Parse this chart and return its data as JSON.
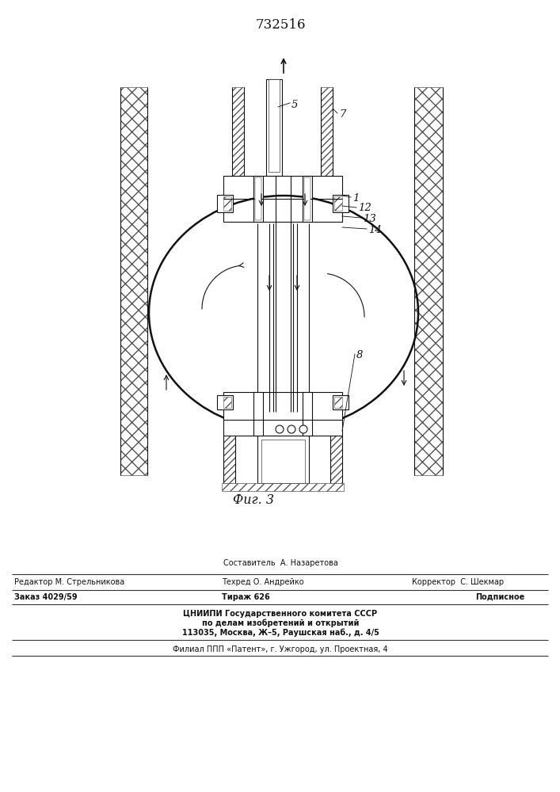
{
  "patent_number": "732516",
  "fig_label": "Фиг. 3",
  "bg_color": "#ffffff",
  "line_color": "#111111",
  "footer": {
    "составитель": "Составитель  А. Назаретова",
    "редактор": "Редактор М. Стрельникова",
    "техред": "Техред О. Андрейко",
    "корректор": "Корректор  С. Шекмар",
    "заказ": "Заказ 4029/59",
    "тираж": "Тираж 626",
    "подписное": "Подписное",
    "цниипи1": "ЦНИИПИ Государственного комитета СССР",
    "цниипи2": "по делам изобретений и открытий",
    "цниипи3": "113035, Москва, Ж–5, Раушская наб., д. 4/5",
    "филиал": "Филиал ППП «Патент», г. Ужгород, ул. Проектная, 4"
  }
}
